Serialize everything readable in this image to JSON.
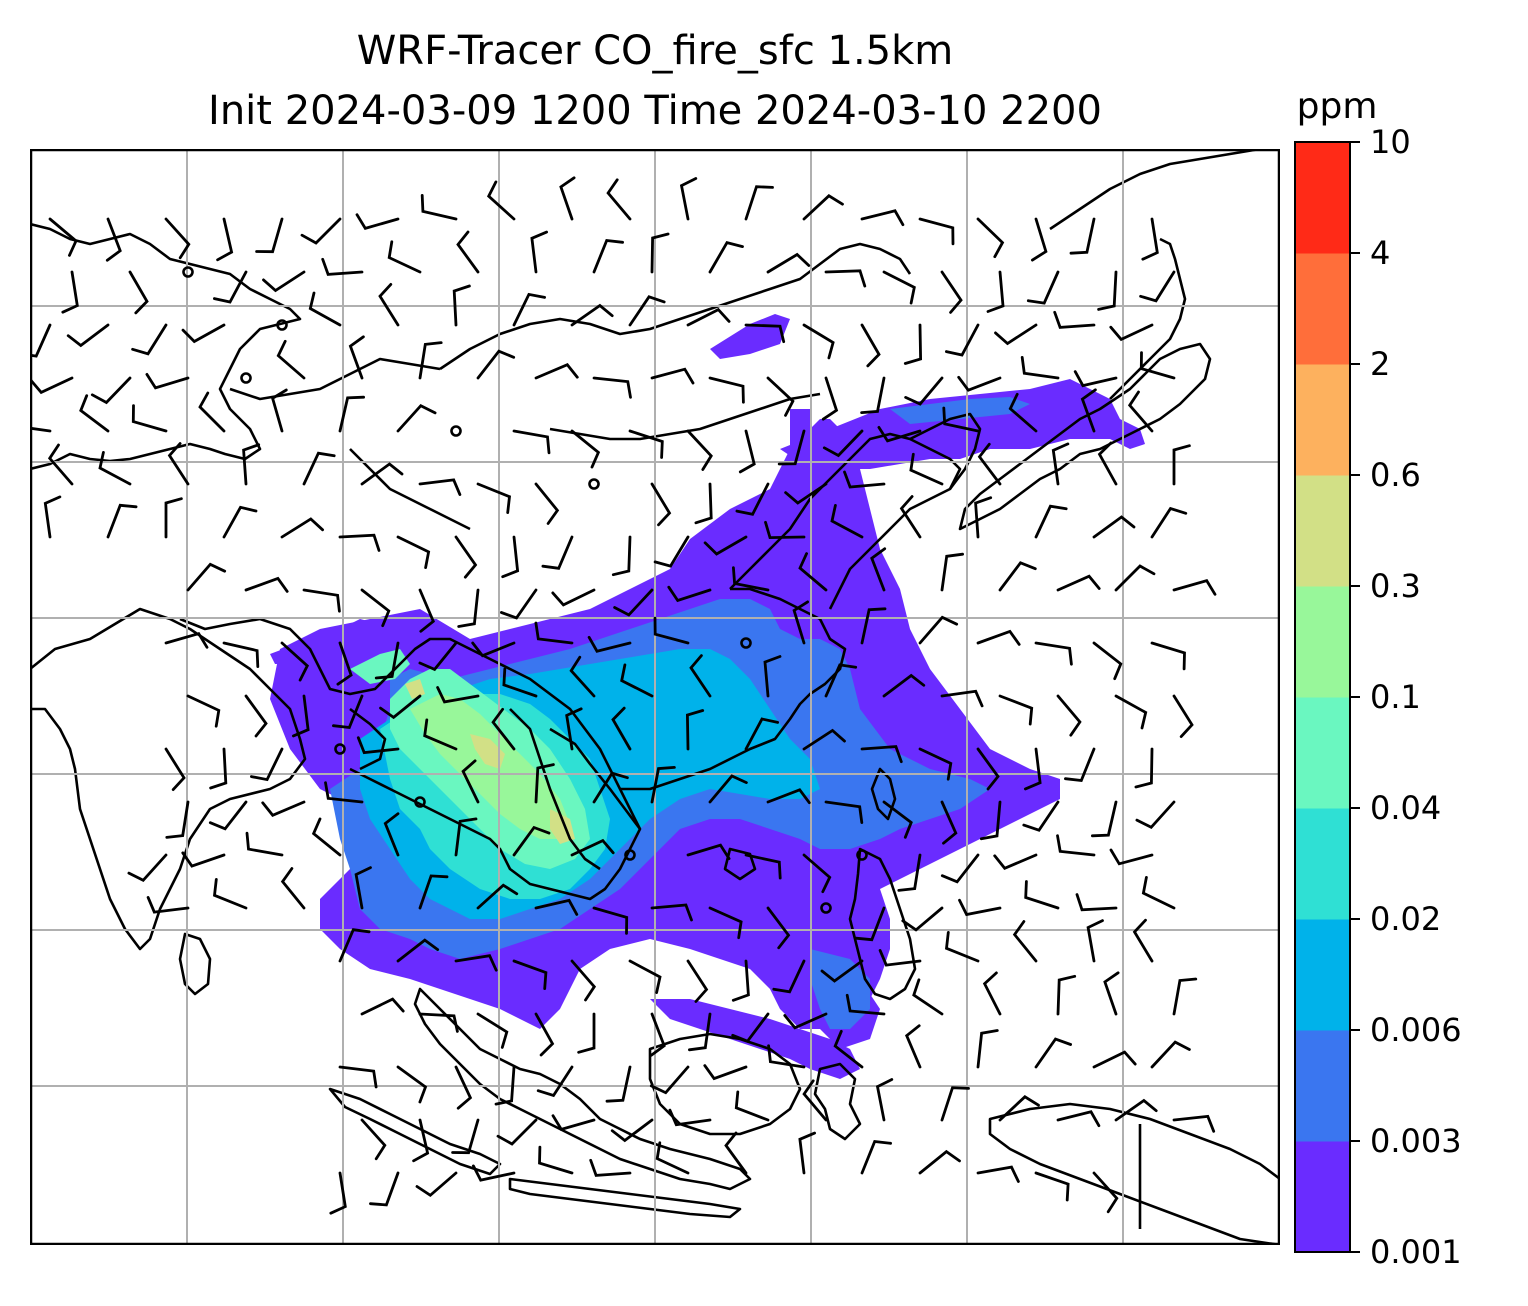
{
  "title": {
    "line1": "WRF-Tracer CO_fire_sfc 1.5km",
    "line2": "Init 2024-03-09 1200 Time 2024-03-10 2200"
  },
  "colorbar": {
    "unit_label": "ppm",
    "tick_labels": [
      "0.001",
      "0.003",
      "0.006",
      "0.02",
      "0.04",
      "0.1",
      "0.3",
      "0.6",
      "2",
      "4",
      "10"
    ],
    "colors": [
      "#6a2cff",
      "#3a76f0",
      "#00b2ea",
      "#2fe0d4",
      "#6af7c0",
      "#98f79a",
      "#d2e086",
      "#fdb15e",
      "#ff6e3a",
      "#ff2a17"
    ]
  },
  "map": {
    "land_outline_color": "#000000",
    "gridline_color": "#b0b0b0",
    "plume_colors": {
      "low": "#6a2cff",
      "blue": "#3a76f0",
      "cyan": "#00b2ea",
      "teal": "#2fe0d4",
      "mint": "#6af7c0",
      "green": "#98f79a",
      "yellowgreen": "#d2e086"
    }
  }
}
